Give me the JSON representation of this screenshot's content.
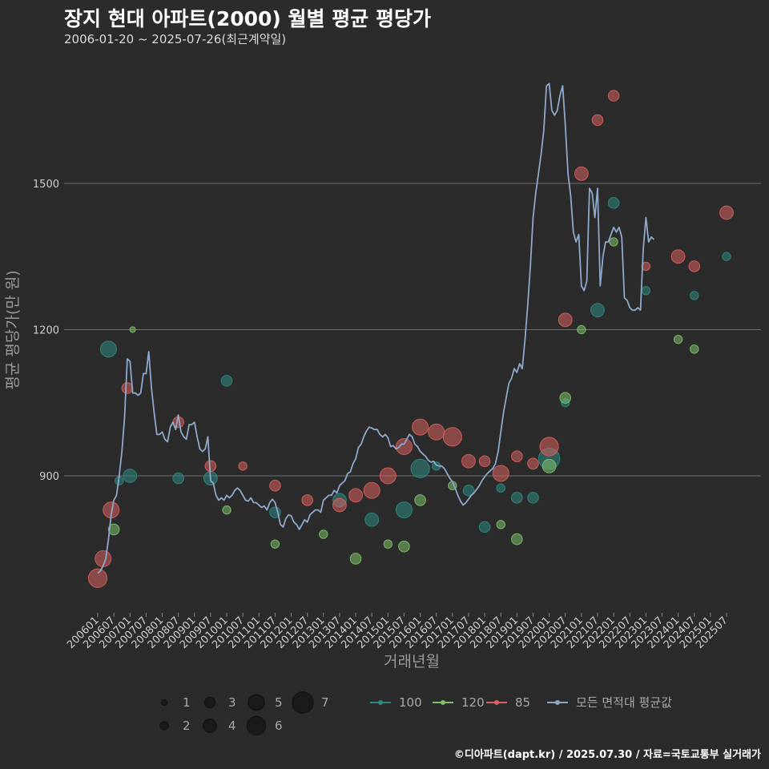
{
  "header": {
    "title": "장지 현대 아파트(2000) 월별 평균 평당가",
    "subtitle": "2006-01-20 ~ 2025-07-26(최근계약일)"
  },
  "footer": {
    "credit": "©디아파트(dapt.kr) / 2025.07.30 / 자료=국토교통부 실거래가"
  },
  "colors": {
    "background": "#2b2b2b",
    "grid": "#6e6e6e",
    "avg_line": "#8fa9cc",
    "s100": "#2f8a82",
    "s120": "#7fbf6a",
    "s85": "#d9615f"
  },
  "chart_data": {
    "type": "scatter+line",
    "title": "장지 현대 아파트(2000) 월별 평균 평당가",
    "xlabel": "거래년월",
    "ylabel": "평균 평당가(만 원)",
    "x_range": [
      "200601",
      "202507"
    ],
    "ylim": [
      690,
      1710
    ],
    "yticks": [
      900,
      1200,
      1500
    ],
    "xticks": [
      "200601",
      "200607",
      "200701",
      "200707",
      "200801",
      "200807",
      "200901",
      "200907",
      "201001",
      "201007",
      "201101",
      "201107",
      "201201",
      "201207",
      "201301",
      "201307",
      "201401",
      "201407",
      "201501",
      "201507",
      "201601",
      "201607",
      "201701",
      "201707",
      "201801",
      "201807",
      "201901",
      "201907",
      "202001",
      "202007",
      "202101",
      "202107",
      "202201",
      "202207",
      "202301",
      "202307",
      "202401",
      "202407",
      "202501",
      "202507"
    ],
    "size_legend": {
      "title": "",
      "values": [
        "1",
        "2",
        "3",
        "4",
        "5",
        "6",
        "7"
      ]
    },
    "color_legend": [
      {
        "key": "s100",
        "label": "100"
      },
      {
        "key": "s120",
        "label": "120"
      },
      {
        "key": "s85",
        "label": "85"
      },
      {
        "key": "avg",
        "label": "모든 면적대 평균값"
      }
    ],
    "avg_line": [
      [
        "200601",
        700
      ],
      [
        "200602",
        705
      ],
      [
        "200603",
        715
      ],
      [
        "200604",
        730
      ],
      [
        "200605",
        770
      ],
      [
        "200606",
        820
      ],
      [
        "200607",
        850
      ],
      [
        "200608",
        860
      ],
      [
        "200609",
        900
      ],
      [
        "200610",
        950
      ],
      [
        "200611",
        1020
      ],
      [
        "200612",
        1140
      ],
      [
        "200701",
        1135
      ],
      [
        "200702",
        1070
      ],
      [
        "200703",
        1070
      ],
      [
        "200704",
        1065
      ],
      [
        "200705",
        1070
      ],
      [
        "200706",
        1110
      ],
      [
        "200707",
        1110
      ],
      [
        "200708",
        1155
      ],
      [
        "200709",
        1080
      ],
      [
        "200710",
        1030
      ],
      [
        "200711",
        985
      ],
      [
        "200712",
        985
      ],
      [
        "200801",
        990
      ],
      [
        "200802",
        975
      ],
      [
        "200803",
        970
      ],
      [
        "200804",
        1000
      ],
      [
        "200805",
        1010
      ],
      [
        "200806",
        995
      ],
      [
        "200807",
        1025
      ],
      [
        "200808",
        990
      ],
      [
        "200809",
        980
      ],
      [
        "200810",
        975
      ],
      [
        "200811",
        1005
      ],
      [
        "200812",
        1005
      ],
      [
        "200901",
        1010
      ],
      [
        "200902",
        980
      ],
      [
        "200903",
        955
      ],
      [
        "200904",
        950
      ],
      [
        "200905",
        955
      ],
      [
        "200906",
        980
      ],
      [
        "200907",
        890
      ],
      [
        "200908",
        885
      ],
      [
        "200909",
        860
      ],
      [
        "200910",
        850
      ],
      [
        "200911",
        855
      ],
      [
        "200912",
        850
      ],
      [
        "201001",
        860
      ],
      [
        "201002",
        855
      ],
      [
        "201003",
        860
      ],
      [
        "201004",
        870
      ],
      [
        "201005",
        875
      ],
      [
        "201006",
        870
      ],
      [
        "201007",
        860
      ],
      [
        "201008",
        850
      ],
      [
        "201009",
        848
      ],
      [
        "201010",
        855
      ],
      [
        "201011",
        845
      ],
      [
        "201012",
        845
      ],
      [
        "201101",
        840
      ],
      [
        "201102",
        835
      ],
      [
        "201103",
        838
      ],
      [
        "201104",
        830
      ],
      [
        "201105",
        845
      ],
      [
        "201106",
        852
      ],
      [
        "201107",
        845
      ],
      [
        "201108",
        825
      ],
      [
        "201109",
        800
      ],
      [
        "201110",
        795
      ],
      [
        "201111",
        812
      ],
      [
        "201112",
        820
      ],
      [
        "201201",
        818
      ],
      [
        "201202",
        805
      ],
      [
        "201203",
        800
      ],
      [
        "201204",
        790
      ],
      [
        "201205",
        800
      ],
      [
        "201206",
        810
      ],
      [
        "201207",
        805
      ],
      [
        "201208",
        820
      ],
      [
        "201209",
        825
      ],
      [
        "201210",
        830
      ],
      [
        "201211",
        830
      ],
      [
        "201212",
        825
      ],
      [
        "201301",
        850
      ],
      [
        "201302",
        855
      ],
      [
        "201303",
        860
      ],
      [
        "201304",
        860
      ],
      [
        "201305",
        870
      ],
      [
        "201306",
        865
      ],
      [
        "201307",
        880
      ],
      [
        "201308",
        885
      ],
      [
        "201309",
        890
      ],
      [
        "201310",
        905
      ],
      [
        "201311",
        908
      ],
      [
        "201312",
        925
      ],
      [
        "201401",
        935
      ],
      [
        "201402",
        958
      ],
      [
        "201403",
        965
      ],
      [
        "201404",
        980
      ],
      [
        "201405",
        992
      ],
      [
        "201406",
        1000
      ],
      [
        "201407",
        998
      ],
      [
        "201408",
        995
      ],
      [
        "201409",
        995
      ],
      [
        "201410",
        985
      ],
      [
        "201411",
        980
      ],
      [
        "201412",
        985
      ],
      [
        "201501",
        978
      ],
      [
        "201502",
        960
      ],
      [
        "201503",
        962
      ],
      [
        "201504",
        955
      ],
      [
        "201505",
        958
      ],
      [
        "201506",
        965
      ],
      [
        "201507",
        965
      ],
      [
        "201508",
        975
      ],
      [
        "201509",
        985
      ],
      [
        "201510",
        980
      ],
      [
        "201511",
        965
      ],
      [
        "201512",
        960
      ],
      [
        "201601",
        950
      ],
      [
        "201602",
        945
      ],
      [
        "201603",
        940
      ],
      [
        "201604",
        932
      ],
      [
        "201605",
        928
      ],
      [
        "201606",
        930
      ],
      [
        "201607",
        922
      ],
      [
        "201608",
        920
      ],
      [
        "201609",
        920
      ],
      [
        "201610",
        915
      ],
      [
        "201611",
        905
      ],
      [
        "201612",
        895
      ],
      [
        "201701",
        888
      ],
      [
        "201702",
        875
      ],
      [
        "201703",
        860
      ],
      [
        "201704",
        848
      ],
      [
        "201705",
        840
      ],
      [
        "201706",
        845
      ],
      [
        "201707",
        852
      ],
      [
        "201708",
        860
      ],
      [
        "201709",
        865
      ],
      [
        "201710",
        872
      ],
      [
        "201711",
        880
      ],
      [
        "201712",
        890
      ],
      [
        "201801",
        898
      ],
      [
        "201802",
        905
      ],
      [
        "201803",
        910
      ],
      [
        "201804",
        915
      ],
      [
        "201805",
        925
      ],
      [
        "201806",
        950
      ],
      [
        "201807",
        990
      ],
      [
        "201808",
        1030
      ],
      [
        "201809",
        1060
      ],
      [
        "201810",
        1090
      ],
      [
        "201811",
        1100
      ],
      [
        "201812",
        1120
      ],
      [
        "201901",
        1112
      ],
      [
        "201902",
        1130
      ],
      [
        "201903",
        1120
      ],
      [
        "201904",
        1180
      ],
      [
        "201905",
        1250
      ],
      [
        "201906",
        1330
      ],
      [
        "201907",
        1430
      ],
      [
        "201908",
        1480
      ],
      [
        "201909",
        1520
      ],
      [
        "201910",
        1560
      ],
      [
        "201911",
        1610
      ],
      [
        "201912",
        1700
      ],
      [
        "202001",
        1705
      ],
      [
        "202002",
        1650
      ],
      [
        "202003",
        1640
      ],
      [
        "202004",
        1650
      ],
      [
        "202005",
        1680
      ],
      [
        "202006",
        1700
      ],
      [
        "202007",
        1620
      ],
      [
        "202008",
        1520
      ],
      [
        "202009",
        1475
      ],
      [
        "202010",
        1400
      ],
      [
        "202011",
        1380
      ],
      [
        "202012",
        1395
      ],
      [
        "202101",
        1290
      ],
      [
        "202102",
        1280
      ],
      [
        "202103",
        1300
      ],
      [
        "202104",
        1490
      ],
      [
        "202105",
        1480
      ],
      [
        "202106",
        1430
      ],
      [
        "202107",
        1490
      ],
      [
        "202108",
        1290
      ],
      [
        "202109",
        1350
      ],
      [
        "202110",
        1380
      ],
      [
        "202111",
        1380
      ],
      [
        "202112",
        1395
      ],
      [
        "202201",
        1410
      ],
      [
        "202202",
        1400
      ],
      [
        "202203",
        1410
      ],
      [
        "202204",
        1390
      ],
      [
        "202205",
        1265
      ],
      [
        "202206",
        1260
      ],
      [
        "202207",
        1245
      ],
      [
        "202208",
        1240
      ],
      [
        "202209",
        1240
      ],
      [
        "202210",
        1245
      ],
      [
        "202211",
        1240
      ],
      [
        "202212",
        1365
      ],
      [
        "202301",
        1430
      ],
      [
        "202302",
        1380
      ],
      [
        "202303",
        1390
      ],
      [
        "202304",
        1385
      ]
    ],
    "series": [
      {
        "name": "100",
        "color_key": "s100",
        "points": [
          [
            "200605",
            1160,
            5
          ],
          [
            "200609",
            890,
            2
          ],
          [
            "200701",
            900,
            4
          ],
          [
            "200807",
            895,
            3
          ],
          [
            "200907",
            895,
            4
          ],
          [
            "201001",
            1095,
            3
          ],
          [
            "201107",
            825,
            3
          ],
          [
            "201307",
            850,
            4
          ],
          [
            "201407",
            810,
            4
          ],
          [
            "201507",
            830,
            5
          ],
          [
            "201601",
            915,
            6
          ],
          [
            "201607",
            920,
            2
          ],
          [
            "201707",
            870,
            3
          ],
          [
            "201801",
            795,
            3
          ],
          [
            "201807",
            875,
            2
          ],
          [
            "201901",
            855,
            3
          ],
          [
            "201907",
            855,
            3
          ],
          [
            "202001",
            935,
            7
          ],
          [
            "202007",
            1050,
            2
          ],
          [
            "202107",
            1240,
            4
          ],
          [
            "202201",
            1460,
            3
          ],
          [
            "202301",
            1280,
            2
          ],
          [
            "202407",
            1270,
            2
          ],
          [
            "202507",
            1350,
            2
          ]
        ]
      },
      {
        "name": "120",
        "color_key": "s120",
        "points": [
          [
            "200607",
            790,
            3
          ],
          [
            "200702",
            1200,
            1
          ],
          [
            "201001",
            830,
            2
          ],
          [
            "201107",
            760,
            2
          ],
          [
            "201301",
            780,
            2
          ],
          [
            "201401",
            730,
            3
          ],
          [
            "201501",
            760,
            2
          ],
          [
            "201507",
            755,
            3
          ],
          [
            "201601",
            850,
            3
          ],
          [
            "201701",
            880,
            2
          ],
          [
            "201807",
            800,
            2
          ],
          [
            "201901",
            770,
            3
          ],
          [
            "202001",
            920,
            4
          ],
          [
            "202007",
            1060,
            3
          ],
          [
            "202101",
            1200,
            2
          ],
          [
            "202201",
            1380,
            2
          ],
          [
            "202401",
            1180,
            2
          ],
          [
            "202407",
            1160,
            2
          ]
        ]
      },
      {
        "name": "85",
        "color_key": "s85",
        "points": [
          [
            "200601",
            690,
            6
          ],
          [
            "200603",
            730,
            5
          ],
          [
            "200606",
            830,
            5
          ],
          [
            "200612",
            1080,
            3
          ],
          [
            "200807",
            1010,
            3
          ],
          [
            "200907",
            920,
            3
          ],
          [
            "201007",
            920,
            2
          ],
          [
            "201107",
            880,
            3
          ],
          [
            "201207",
            850,
            3
          ],
          [
            "201307",
            840,
            4
          ],
          [
            "201401",
            860,
            4
          ],
          [
            "201407",
            870,
            5
          ],
          [
            "201501",
            900,
            5
          ],
          [
            "201507",
            960,
            5
          ],
          [
            "201601",
            1000,
            5
          ],
          [
            "201607",
            990,
            5
          ],
          [
            "201701",
            980,
            6
          ],
          [
            "201707",
            930,
            4
          ],
          [
            "201801",
            930,
            3
          ],
          [
            "201807",
            905,
            5
          ],
          [
            "201901",
            940,
            3
          ],
          [
            "201907",
            925,
            3
          ],
          [
            "202001",
            960,
            6
          ],
          [
            "202007",
            1220,
            4
          ],
          [
            "202101",
            1520,
            4
          ],
          [
            "202107",
            1630,
            3
          ],
          [
            "202201",
            1680,
            3
          ],
          [
            "202301",
            1330,
            2
          ],
          [
            "202401",
            1350,
            4
          ],
          [
            "202407",
            1330,
            3
          ],
          [
            "202507",
            1440,
            4
          ]
        ]
      }
    ]
  }
}
